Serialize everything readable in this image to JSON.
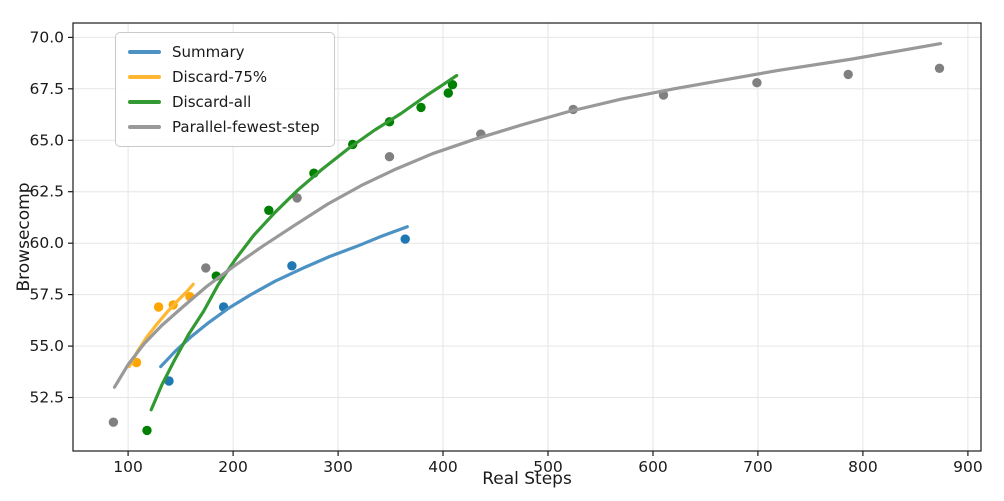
{
  "chart_data": {
    "type": "scatter",
    "title": "",
    "xlabel": "Real Steps",
    "ylabel": "Browsecomp",
    "xlim": [
      47.5,
      912.5
    ],
    "ylim": [
      49.9,
      70.7
    ],
    "x_ticks": [
      100,
      200,
      300,
      400,
      500,
      600,
      700,
      800,
      900
    ],
    "y_ticks": [
      52.5,
      55.0,
      57.5,
      60.0,
      62.5,
      65.0,
      67.5,
      70.0
    ],
    "y_tick_labels": [
      "52.5",
      "55.0",
      "57.5",
      "60.0",
      "62.5",
      "65.0",
      "67.5",
      "70.0"
    ],
    "grid": true,
    "grid_color": "#e6e6e6",
    "spine_color": "#1a1a1a",
    "text_color": "#1a1a1a",
    "background": "#ffffff",
    "legend_position": "upper-left",
    "series": [
      {
        "name": "Summary",
        "slug": "summary",
        "dot_color": "#1f77b4",
        "line_color": "#4c92c3",
        "points": [
          [
            139,
            53.3
          ],
          [
            191,
            56.9
          ],
          [
            256,
            58.9
          ],
          [
            364,
            60.2
          ]
        ],
        "fit_curve": [
          [
            131,
            54.0
          ],
          [
            145,
            54.75
          ],
          [
            160,
            55.45
          ],
          [
            177,
            56.15
          ],
          [
            196,
            56.85
          ],
          [
            217,
            57.5
          ],
          [
            240,
            58.15
          ],
          [
            265,
            58.75
          ],
          [
            292,
            59.35
          ],
          [
            318,
            59.85
          ],
          [
            342,
            60.35
          ],
          [
            366,
            60.8
          ]
        ]
      },
      {
        "name": "Discard-75%",
        "slug": "discard-75",
        "dot_color": "#ffa500",
        "line_color": "#ffb733",
        "points": [
          [
            108,
            54.2
          ],
          [
            129,
            56.9
          ],
          [
            143,
            57.0
          ],
          [
            159,
            57.4
          ]
        ],
        "fit_curve": [
          [
            101,
            54.0
          ],
          [
            109,
            54.75
          ],
          [
            118,
            55.45
          ],
          [
            128,
            56.1
          ],
          [
            138,
            56.7
          ],
          [
            148,
            57.25
          ],
          [
            156,
            57.65
          ],
          [
            162,
            58.0
          ]
        ]
      },
      {
        "name": "Discard-all",
        "slug": "discard-all",
        "dot_color": "#008000",
        "line_color": "#339933",
        "points": [
          [
            118,
            50.9
          ],
          [
            184,
            58.4
          ],
          [
            234,
            61.6
          ],
          [
            277,
            63.4
          ],
          [
            314,
            64.8
          ],
          [
            349,
            65.9
          ],
          [
            379,
            66.6
          ],
          [
            405,
            67.3
          ],
          [
            409,
            67.7
          ]
        ],
        "fit_curve": [
          [
            122,
            51.9
          ],
          [
            132,
            53.1
          ],
          [
            144,
            54.3
          ],
          [
            158,
            55.6
          ],
          [
            172,
            56.7
          ],
          [
            186,
            58.0
          ],
          [
            202,
            59.2
          ],
          [
            220,
            60.4
          ],
          [
            240,
            61.5
          ],
          [
            262,
            62.6
          ],
          [
            285,
            63.6
          ],
          [
            310,
            64.6
          ],
          [
            335,
            65.5
          ],
          [
            360,
            66.3
          ],
          [
            385,
            67.2
          ],
          [
            400,
            67.7
          ],
          [
            413,
            68.15
          ]
        ]
      },
      {
        "name": "Parallel-fewest-step",
        "slug": "parallel-fewest-step",
        "dot_color": "#808080",
        "line_color": "#999999",
        "points": [
          [
            86,
            51.3
          ],
          [
            174,
            58.8
          ],
          [
            261,
            62.2
          ],
          [
            349,
            64.2
          ],
          [
            436,
            65.3
          ],
          [
            524,
            66.5
          ],
          [
            610,
            67.2
          ],
          [
            699,
            67.8
          ],
          [
            786,
            68.2
          ],
          [
            873,
            68.5
          ]
        ],
        "fit_curve": [
          [
            87,
            53.0
          ],
          [
            100,
            54.1
          ],
          [
            115,
            55.1
          ],
          [
            132,
            56.0
          ],
          [
            152,
            56.9
          ],
          [
            175,
            57.9
          ],
          [
            200,
            58.85
          ],
          [
            228,
            59.85
          ],
          [
            258,
            60.85
          ],
          [
            290,
            61.9
          ],
          [
            322,
            62.8
          ],
          [
            355,
            63.6
          ],
          [
            390,
            64.35
          ],
          [
            430,
            65.05
          ],
          [
            475,
            65.75
          ],
          [
            520,
            66.4
          ],
          [
            570,
            67.0
          ],
          [
            620,
            67.5
          ],
          [
            670,
            67.95
          ],
          [
            720,
            68.4
          ],
          [
            790,
            68.95
          ],
          [
            874,
            69.7
          ]
        ]
      }
    ]
  }
}
